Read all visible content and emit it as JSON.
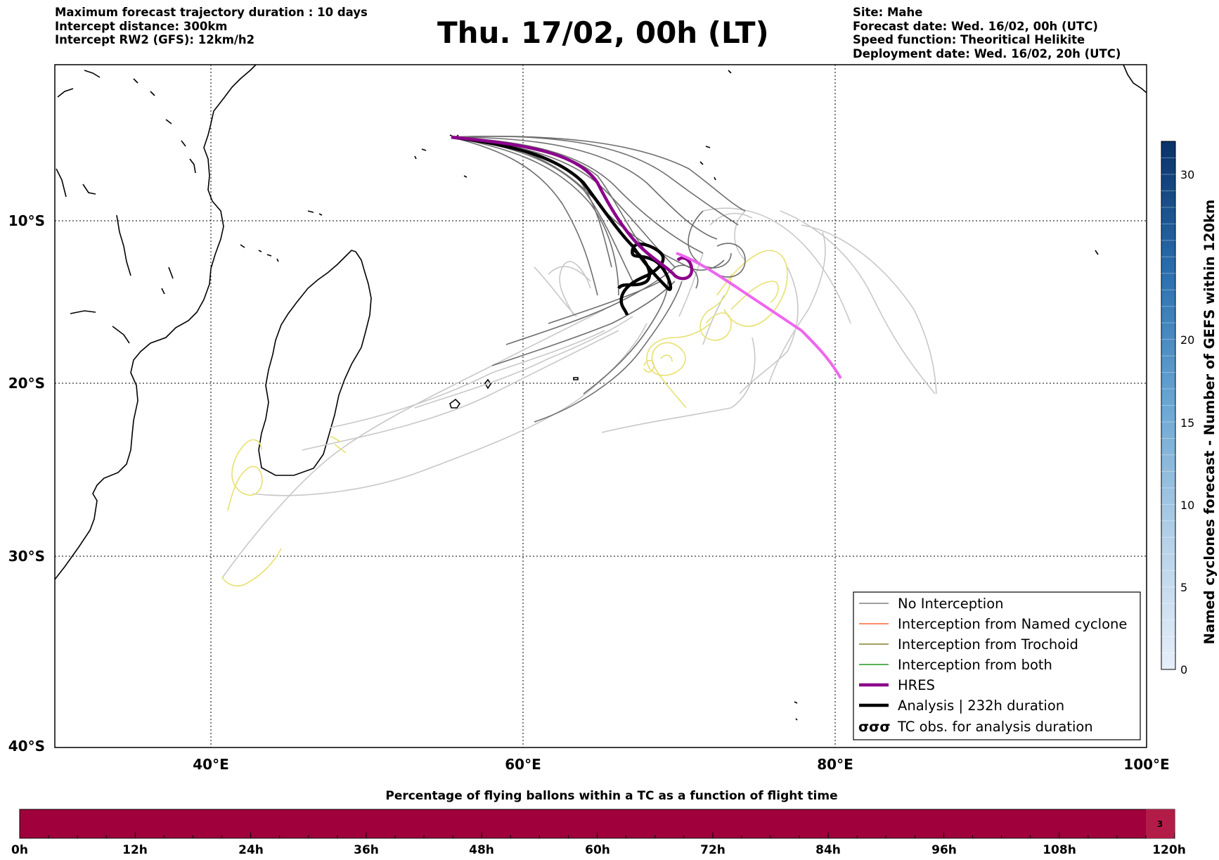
{
  "header_left": [
    "Maximum forecast trajectory duration : 10 days",
    "Intercept distance: 300km",
    "Intercept RW2 (GFS):  12km/h2"
  ],
  "title": "Thu. 17/02, 00h (LT)",
  "header_right": [
    "Site: Mahe",
    "Forecast date: Wed. 16/02, 00h (UTC)",
    "Speed function: Theoritical Helikite",
    "Deployment date: Wed. 16/02, 20h (UTC)"
  ],
  "map": {
    "lon_range": [
      30,
      100
    ],
    "lat_range": [
      -40,
      0
    ],
    "lon_labels": [
      "40°E",
      "60°E",
      "80°E",
      "100°E"
    ],
    "lat_labels": [
      "10°S",
      "20°S",
      "30°S",
      "40°S"
    ],
    "colors": {
      "no_interception": "#6e6e6e",
      "light_traj": "#c8c8c8",
      "hres": "#8b008b",
      "analysis": "#000000",
      "pink": "#ee66ee",
      "tc_obs": "#e8e070"
    }
  },
  "legend": {
    "items": [
      {
        "label": "No Interception",
        "color": "#808080"
      },
      {
        "label": "Interception from Named cyclone",
        "color": "#ff6633"
      },
      {
        "label": "Interception from Trochoid",
        "color": "#808033"
      },
      {
        "label": "Interception from both",
        "color": "#229922"
      },
      {
        "label": "HRES",
        "color": "#8b008b"
      },
      {
        "label": "Analysis | 232h duration",
        "color": "#000000"
      },
      {
        "label": "TC obs. for analysis duration",
        "symbol": "σσσ"
      }
    ]
  },
  "colorbar": {
    "label": "Named cyclones forecast - Number of GEFS within 120km",
    "ticks": [
      "0",
      "5",
      "10",
      "15",
      "20",
      "30"
    ],
    "range": [
      0,
      32
    ]
  },
  "bottom_bar": {
    "title": "Percentage of flying ballons within a TC as a function of flight time",
    "tick_labels": [
      "0h",
      "12h",
      "24h",
      "36h",
      "48h",
      "60h",
      "72h",
      "84h",
      "96h",
      "108h",
      "120h"
    ],
    "fill_color": "#a0003c",
    "last_cell_value": "3"
  }
}
